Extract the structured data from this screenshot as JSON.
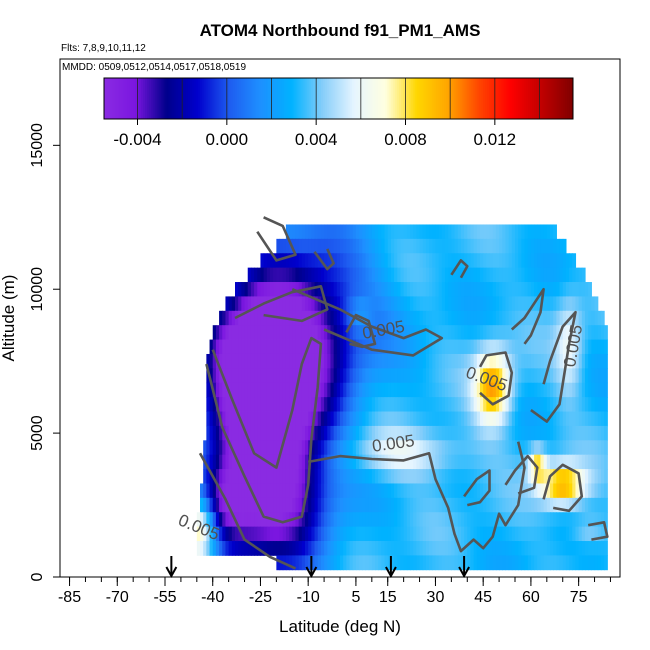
{
  "chart_data": {
    "type": "heatmap",
    "title": "ATOM4 Northbound f91_PM1_AMS",
    "flights_label": "Flts: 7,8,9,10,11,12",
    "mmdd_label": "MMDD: 0509,0512,0514,0517,0518,0519",
    "xlabel": "Latitude (deg N)",
    "ylabel": "Altitude (m)",
    "xlim": [
      -88,
      88
    ],
    "ylim": [
      0,
      18000
    ],
    "x_ticks": [
      -85,
      -70,
      -55,
      -40,
      -25,
      -10,
      5,
      15,
      30,
      45,
      60,
      75
    ],
    "x_tick_labels": [
      "-85",
      "-70",
      "-55",
      "-40",
      "-25",
      "-10",
      "5",
      "15",
      "30",
      "45",
      "60",
      "75"
    ],
    "x_minor_step": 5,
    "y_ticks": [
      0,
      5000,
      10000,
      15000
    ],
    "y_tick_labels": [
      "0",
      "5000",
      "10000",
      "15000"
    ],
    "colorbar": {
      "min": -0.0055,
      "max": 0.0155,
      "ticks": [
        -0.004,
        0.0,
        0.004,
        0.008,
        0.012
      ],
      "tick_labels": [
        "-0.004",
        "0.000",
        "0.004",
        "0.008",
        "0.012"
      ],
      "colors": [
        "#8a2be2",
        "#7b16e0",
        "#00008b",
        "#0000cd",
        "#1e5cf0",
        "#1e90ff",
        "#00b2ff",
        "#87cefa",
        "#e6f5ff",
        "#ffffe0",
        "#ffd700",
        "#ffa500",
        "#ff4500",
        "#ff0000",
        "#c00000",
        "#800000"
      ],
      "divider_values": [
        -0.004,
        -0.002,
        0.0,
        0.002,
        0.004,
        0.006,
        0.008,
        0.01,
        0.012,
        0.014
      ]
    },
    "contour_level": 0.005,
    "contour_labels": [
      {
        "text": "0.005",
        "x": 14,
        "y": 8400,
        "rotate": -10
      },
      {
        "text": "0.005",
        "x": 45.5,
        "y": 6700,
        "rotate": 20
      },
      {
        "text": "0.005",
        "x": 17,
        "y": 4450,
        "rotate": -8
      },
      {
        "text": "0.005",
        "x": -45,
        "y": 1550,
        "rotate": 22
      },
      {
        "text": "0.005",
        "x": 75,
        "y": 8000,
        "rotate": -80
      }
    ],
    "flight_markers_lat": [
      -53,
      -9,
      16,
      39
    ],
    "levels": [
      {
        "alt": 12000,
        "lon": -17,
        "hi": 68
      },
      {
        "alt": 11500,
        "lon": -20,
        "hi": 71
      },
      {
        "alt": 11000,
        "lon": -25,
        "hi": 74
      },
      {
        "alt": 10500,
        "lon": -29,
        "hi": 77
      },
      {
        "alt": 10000,
        "lon": -33,
        "hi": 79
      },
      {
        "alt": 9500,
        "lon": -36,
        "hi": 81
      },
      {
        "alt": 9000,
        "lon": -38,
        "hi": 83
      },
      {
        "alt": 8500,
        "lon": -40,
        "hi": 84
      },
      {
        "alt": 8000,
        "lon": -41,
        "hi": 84
      },
      {
        "alt": 7500,
        "lon": -42,
        "hi": 84
      },
      {
        "alt": 7000,
        "lon": -42,
        "hi": 84
      },
      {
        "alt": 6500,
        "lon": -42,
        "hi": 84
      },
      {
        "alt": 6000,
        "lon": -42,
        "hi": 84
      },
      {
        "alt": 5500,
        "lon": -42,
        "hi": 84
      },
      {
        "alt": 5000,
        "lon": -42,
        "hi": 84
      },
      {
        "alt": 4500,
        "lon": -43,
        "hi": 84
      },
      {
        "alt": 4000,
        "lon": -43,
        "hi": 84
      },
      {
        "alt": 3500,
        "lon": -43,
        "hi": 84
      },
      {
        "alt": 3000,
        "lon": -44,
        "hi": 84
      },
      {
        "alt": 2500,
        "lon": -44,
        "hi": 84
      },
      {
        "alt": 2000,
        "lon": -45,
        "hi": 84
      },
      {
        "alt": 1500,
        "lon": -45,
        "hi": 84
      },
      {
        "alt": 1000,
        "lon": -45,
        "hi": 84
      },
      {
        "alt": 500,
        "lon": -20,
        "hi": 84
      }
    ],
    "features": [
      {
        "x": -22,
        "y": 4500,
        "sx": 12,
        "sy": 2800,
        "v": -0.009
      },
      {
        "x": -28,
        "y": 7800,
        "sx": 10,
        "sy": 1400,
        "v": -0.0045
      },
      {
        "x": -10,
        "y": 9000,
        "sx": 14,
        "sy": 2000,
        "v": -0.003
      },
      {
        "x": -36,
        "y": 2500,
        "sx": 6,
        "sy": 1000,
        "v": -0.002
      },
      {
        "x": -44,
        "y": 1700,
        "sx": 4,
        "sy": 800,
        "v": 0.0095
      },
      {
        "x": -40,
        "y": 1200,
        "sx": 10,
        "sy": 700,
        "v": 0.004
      },
      {
        "x": 48,
        "y": 6600,
        "sx": 4,
        "sy": 900,
        "v": 0.01
      },
      {
        "x": 70,
        "y": 3200,
        "sx": 5,
        "sy": 500,
        "v": 0.01
      },
      {
        "x": 62,
        "y": 3900,
        "sx": 2,
        "sy": 400,
        "v": 0.008
      },
      {
        "x": 72,
        "y": 8000,
        "sx": 3,
        "sy": 1200,
        "v": 0.006
      },
      {
        "x": 20,
        "y": 4300,
        "sx": 14,
        "sy": 600,
        "v": 0.006
      },
      {
        "x": 78,
        "y": 1600,
        "sx": 4,
        "sy": 400,
        "v": 0.005
      },
      {
        "x": 6,
        "y": 9100,
        "sx": 3,
        "sy": 500,
        "v": 0.005
      }
    ],
    "contours": [
      [
        [
          -42,
          7400
        ],
        [
          -37,
          5200
        ],
        [
          -30,
          3500
        ],
        [
          -24,
          2100
        ],
        [
          -18,
          1900
        ],
        [
          -12,
          2100
        ],
        [
          -10,
          3200
        ],
        [
          -9,
          4800
        ],
        [
          -7,
          6600
        ],
        [
          -6,
          8100
        ],
        [
          -9,
          8300
        ],
        [
          -12,
          7400
        ],
        [
          -15,
          5800
        ],
        [
          -20,
          3800
        ],
        [
          -27,
          4300
        ],
        [
          -34,
          6200
        ],
        [
          -40,
          7900
        ]
      ],
      [
        [
          -33,
          9000
        ],
        [
          -24,
          9500
        ],
        [
          -15,
          9900
        ],
        [
          -6,
          10100
        ],
        [
          -4,
          9300
        ],
        [
          -12,
          8900
        ],
        [
          -24,
          9100
        ]
      ],
      [
        [
          -44,
          4300
        ],
        [
          -36,
          2700
        ],
        [
          -30,
          1300
        ],
        [
          -22,
          700
        ],
        [
          -14,
          300
        ]
      ],
      [
        [
          -26,
          12000
        ],
        [
          -20,
          11000
        ],
        [
          -14,
          11200
        ],
        [
          -18,
          12200
        ],
        [
          -24,
          12500
        ]
      ],
      [
        [
          -8,
          11300
        ],
        [
          -4,
          10700
        ],
        [
          -2,
          10900
        ],
        [
          -4,
          11400
        ]
      ],
      [
        [
          2,
          8500
        ],
        [
          5,
          9100
        ],
        [
          9,
          8900
        ],
        [
          11,
          8100
        ],
        [
          7,
          8000
        ],
        [
          3,
          8100
        ]
      ],
      [
        [
          -15,
          10000
        ],
        [
          0,
          9300
        ],
        [
          10,
          8700
        ],
        [
          20,
          8300
        ],
        [
          27,
          8600
        ],
        [
          32,
          8300
        ],
        [
          23,
          7700
        ],
        [
          10,
          7900
        ],
        [
          -5,
          8600
        ]
      ],
      [
        [
          35,
          10500
        ],
        [
          38,
          11000
        ],
        [
          40,
          10800
        ],
        [
          38,
          10400
        ]
      ],
      [
        [
          44,
          7300
        ],
        [
          46,
          7700
        ],
        [
          52,
          7800
        ],
        [
          54,
          7100
        ],
        [
          53,
          6300
        ],
        [
          48,
          6000
        ],
        [
          44,
          6400
        ]
      ],
      [
        [
          54,
          8600
        ],
        [
          58,
          9000
        ],
        [
          64,
          10000
        ],
        [
          63,
          9200
        ],
        [
          60,
          8400
        ],
        [
          58,
          8100
        ]
      ],
      [
        [
          60,
          5800
        ],
        [
          65,
          5400
        ],
        [
          69,
          6000
        ],
        [
          72,
          8100
        ],
        [
          74,
          9200
        ],
        [
          70,
          8700
        ],
        [
          66,
          7500
        ],
        [
          64,
          6700
        ]
      ],
      [
        [
          -10,
          4000
        ],
        [
          0,
          4200
        ],
        [
          10,
          4100
        ],
        [
          20,
          4050
        ],
        [
          28,
          4300
        ],
        [
          30,
          3400
        ],
        [
          34,
          2400
        ],
        [
          36,
          1500
        ],
        [
          38,
          900
        ],
        [
          42,
          1300
        ],
        [
          45,
          1000
        ],
        [
          48,
          1400
        ],
        [
          50,
          2200
        ],
        [
          52,
          1800
        ],
        [
          56,
          2500
        ],
        [
          58,
          3800
        ],
        [
          56,
          4700
        ]
      ],
      [
        [
          52,
          3200
        ],
        [
          55,
          3700
        ],
        [
          59,
          4200
        ],
        [
          62,
          3800
        ],
        [
          61,
          3100
        ],
        [
          56,
          2900
        ]
      ],
      [
        [
          64,
          2700
        ],
        [
          66,
          3500
        ],
        [
          70,
          3900
        ],
        [
          75,
          3600
        ],
        [
          76,
          2800
        ],
        [
          72,
          2300
        ],
        [
          67,
          2400
        ]
      ],
      [
        [
          78,
          1800
        ],
        [
          83,
          1900
        ],
        [
          84,
          1400
        ],
        [
          79,
          1300
        ]
      ],
      [
        [
          39,
          2800
        ],
        [
          43,
          3400
        ],
        [
          47,
          3700
        ],
        [
          47,
          3000
        ],
        [
          44,
          2600
        ],
        [
          40,
          2500
        ]
      ]
    ]
  }
}
